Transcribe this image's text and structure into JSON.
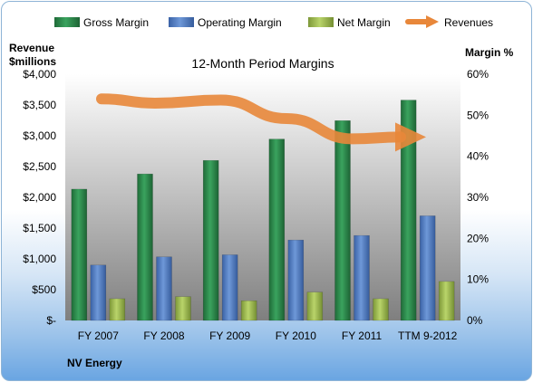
{
  "chart_data": {
    "type": "bar",
    "title": "12-Month Period Margins",
    "company": "NV Energy",
    "categories": [
      "FY 2007",
      "FY 2008",
      "FY 2009",
      "FY 2010",
      "FY 2011",
      "TTM 9-2012"
    ],
    "y_left": {
      "label_line1": "Revenue",
      "label_line2": "$millions",
      "ylim": [
        0,
        4000
      ],
      "ticks": [
        0,
        500,
        1000,
        1500,
        2000,
        2500,
        3000,
        3500,
        4000
      ],
      "tick_labels": [
        "$-",
        "$500",
        "$1,000",
        "$1,500",
        "$2,000",
        "$2,500",
        "$3,000",
        "$3,500",
        "$4,000"
      ]
    },
    "y_right": {
      "label": "Margin %",
      "ylim": [
        0,
        60
      ],
      "ticks": [
        0,
        10,
        20,
        30,
        40,
        50,
        60
      ],
      "tick_labels": [
        "0%",
        "10%",
        "20%",
        "30%",
        "40%",
        "50%",
        "60%"
      ]
    },
    "series": [
      {
        "name": "Gross Margin",
        "axis": "right",
        "color": "#2e8b4e",
        "values": [
          32,
          35.7,
          39,
          44.2,
          48.7,
          53.7
        ]
      },
      {
        "name": "Operating Margin",
        "axis": "right",
        "color": "#4f7cc4",
        "values": [
          13.5,
          15.5,
          16,
          19.6,
          20.7,
          25.5
        ]
      },
      {
        "name": "Net Margin",
        "axis": "right",
        "color": "#9dbb4a",
        "values": [
          5.3,
          5.8,
          4.8,
          6.9,
          5.3,
          9.5
        ]
      },
      {
        "name": "Revenues",
        "axis": "left",
        "type": "line",
        "color": "#e8873a",
        "values": [
          3600,
          3530,
          3580,
          3280,
          2950,
          2980
        ]
      }
    ],
    "grid": false,
    "legend_position": "top"
  }
}
